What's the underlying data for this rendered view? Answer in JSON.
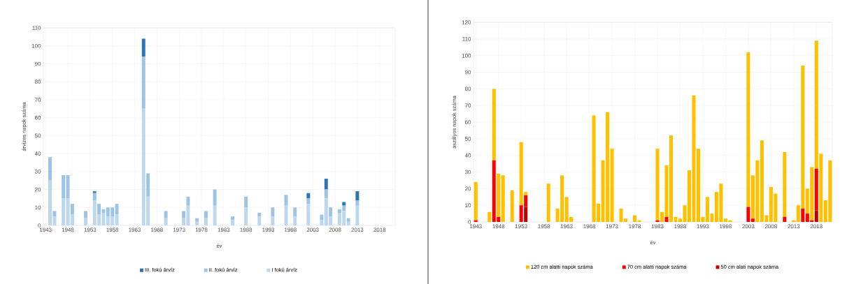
{
  "chart_data": [
    {
      "type": "bar",
      "stacked": true,
      "xlabel": "év",
      "ylabel": "árvizes napok száma",
      "ylim": [
        0,
        110
      ],
      "yticks": [
        0,
        10,
        20,
        30,
        40,
        50,
        60,
        70,
        80,
        90,
        100,
        110
      ],
      "grid": true,
      "legend": "bottom",
      "categories": [
        "1943",
        null,
        null,
        null,
        null,
        "1948",
        null,
        null,
        null,
        null,
        "1953",
        null,
        null,
        null,
        null,
        "1958",
        null,
        null,
        null,
        null,
        "1963",
        null,
        null,
        null,
        null,
        "1968",
        null,
        null,
        null,
        null,
        "1973",
        null,
        null,
        null,
        null,
        "1978",
        null,
        null,
        null,
        null,
        "1983",
        null,
        null,
        null,
        null,
        "1988",
        null,
        null,
        null,
        null,
        "1993",
        null,
        null,
        null,
        null,
        "1998",
        null,
        null,
        null,
        null,
        "2003",
        null,
        null,
        null,
        null,
        "2008",
        null,
        null,
        null,
        null,
        "2013",
        null,
        null,
        null,
        null,
        "2018",
        null,
        null,
        null
      ],
      "series": [
        {
          "name": "I fokú árvíz",
          "color": "#bdd7ee",
          "values": [
            0,
            25,
            5,
            0,
            15,
            15,
            6,
            0,
            0,
            4,
            0,
            14,
            6,
            7,
            5,
            5,
            6,
            0,
            0,
            0,
            0,
            0,
            65,
            16,
            0,
            0,
            0,
            4,
            0,
            0,
            0,
            4,
            11,
            0,
            2,
            0,
            4,
            0,
            11,
            0,
            0,
            0,
            3,
            0,
            0,
            10,
            0,
            0,
            5,
            0,
            0,
            5,
            0,
            0,
            11,
            0,
            5,
            0,
            0,
            12,
            0,
            0,
            3,
            15,
            5,
            0,
            7,
            8,
            2,
            0,
            11,
            0,
            0,
            0,
            0,
            0,
            0,
            0,
            0
          ]
        },
        {
          "name": "II. fokú árvíz",
          "color": "#9dc3e6",
          "values": [
            0,
            13,
            3,
            0,
            13,
            13,
            6,
            0,
            0,
            4,
            0,
            4,
            6,
            2,
            5,
            5,
            6,
            0,
            0,
            0,
            0,
            0,
            29,
            13,
            0,
            0,
            0,
            4,
            0,
            0,
            0,
            4,
            5,
            0,
            2,
            0,
            4,
            0,
            9,
            0,
            0,
            0,
            2,
            0,
            0,
            6,
            0,
            0,
            2,
            0,
            0,
            5,
            0,
            0,
            6,
            0,
            5,
            0,
            0,
            3,
            0,
            0,
            3,
            5,
            5,
            0,
            2,
            3,
            2,
            0,
            3,
            0,
            0,
            0,
            0,
            0,
            0,
            0,
            0
          ]
        },
        {
          "name": "III. fokú árvíz",
          "color": "#2e75b6",
          "values": [
            0,
            0,
            0,
            0,
            0,
            0,
            0,
            0,
            0,
            0,
            0,
            1,
            0,
            0,
            0,
            0,
            0,
            0,
            0,
            0,
            0,
            0,
            10,
            0,
            0,
            0,
            0,
            0,
            0,
            0,
            0,
            0,
            0,
            0,
            0,
            0,
            0,
            0,
            0,
            0,
            0,
            0,
            0,
            0,
            0,
            0,
            0,
            0,
            0,
            0,
            0,
            0,
            0,
            0,
            0,
            0,
            0,
            0,
            0,
            3,
            0,
            0,
            0,
            6,
            0,
            0,
            0,
            2,
            0,
            0,
            5,
            0,
            0,
            0,
            0,
            0,
            0,
            0,
            0
          ]
        }
      ]
    },
    {
      "type": "bar",
      "stacked": true,
      "xlabel": "év",
      "ylabel": "aszályos napok száma",
      "ylim": [
        0,
        120
      ],
      "yticks": [
        0,
        10,
        20,
        30,
        40,
        50,
        60,
        70,
        80,
        90,
        100,
        110,
        120
      ],
      "grid": true,
      "legend": "bottom",
      "categories": [
        "1943",
        null,
        null,
        null,
        null,
        "1948",
        null,
        null,
        null,
        null,
        "1953",
        null,
        null,
        null,
        null,
        "1958",
        null,
        null,
        null,
        null,
        "1963",
        null,
        null,
        null,
        null,
        "1968",
        null,
        null,
        null,
        null,
        "1973",
        null,
        null,
        null,
        null,
        "1978",
        null,
        null,
        null,
        null,
        "1983",
        null,
        null,
        null,
        null,
        "1988",
        null,
        null,
        null,
        null,
        "1993",
        null,
        null,
        null,
        null,
        "1998",
        null,
        null,
        null,
        null,
        "2003",
        null,
        null,
        null,
        null,
        "2008",
        null,
        null,
        null,
        null,
        "2013",
        null,
        null,
        null,
        null,
        "2018",
        null,
        null,
        null
      ],
      "series": [
        {
          "name": "50 cm alati napok száma",
          "color": "#c00000",
          "values": [
            0,
            0,
            0,
            0,
            0,
            0,
            0,
            0,
            0,
            0,
            0,
            9,
            0,
            0,
            0,
            0,
            0,
            0,
            0,
            0,
            0,
            0,
            0,
            0,
            0,
            0,
            0,
            0,
            0,
            0,
            0,
            0,
            0,
            0,
            0,
            0,
            0,
            0,
            0,
            0,
            0,
            0,
            0,
            0,
            0,
            0,
            0,
            0,
            0,
            0,
            0,
            0,
            0,
            0,
            0,
            0,
            0,
            0,
            0,
            0,
            0,
            0,
            0,
            0,
            0,
            0,
            0,
            0,
            0,
            0,
            0,
            0,
            0,
            0,
            0,
            7,
            0,
            0,
            0
          ]
        },
        {
          "name": "70 cm alatti napok száma",
          "color": "#ff0000",
          "values": [
            1,
            0,
            0,
            0,
            37,
            3,
            0,
            0,
            0,
            0,
            10,
            7,
            0,
            0,
            0,
            0,
            0,
            0,
            0,
            0,
            0,
            0,
            0,
            0,
            0,
            0,
            0,
            0,
            0,
            0,
            0,
            0,
            0,
            0,
            0,
            0,
            0,
            0,
            0,
            0,
            1,
            0,
            3,
            0,
            0,
            0,
            0,
            0,
            0,
            0,
            0,
            0,
            0,
            0,
            0,
            0,
            0,
            0,
            0,
            0,
            9,
            2,
            0,
            0,
            0,
            0,
            0,
            0,
            3,
            0,
            0,
            0,
            8,
            5,
            1,
            25,
            0,
            0,
            0
          ]
        },
        {
          "name": "120 cm alatti napok száma",
          "color": "#ffc000",
          "values": [
            23,
            0,
            0,
            6,
            43,
            26,
            28,
            0,
            19,
            0,
            38,
            2,
            0,
            0,
            0,
            0,
            23,
            0,
            8,
            28,
            15,
            3,
            0,
            0,
            0,
            0,
            64,
            11,
            37,
            66,
            44,
            0,
            8,
            2,
            0,
            4,
            1,
            0,
            0,
            0,
            43,
            6,
            31,
            52,
            3,
            2,
            10,
            31,
            76,
            44,
            3,
            15,
            5,
            18,
            23,
            2,
            1,
            0,
            0,
            0,
            93,
            26,
            37,
            49,
            4,
            21,
            17,
            0,
            39,
            0,
            1,
            10,
            86,
            15,
            32,
            77,
            41,
            13,
            37
          ]
        }
      ]
    }
  ]
}
